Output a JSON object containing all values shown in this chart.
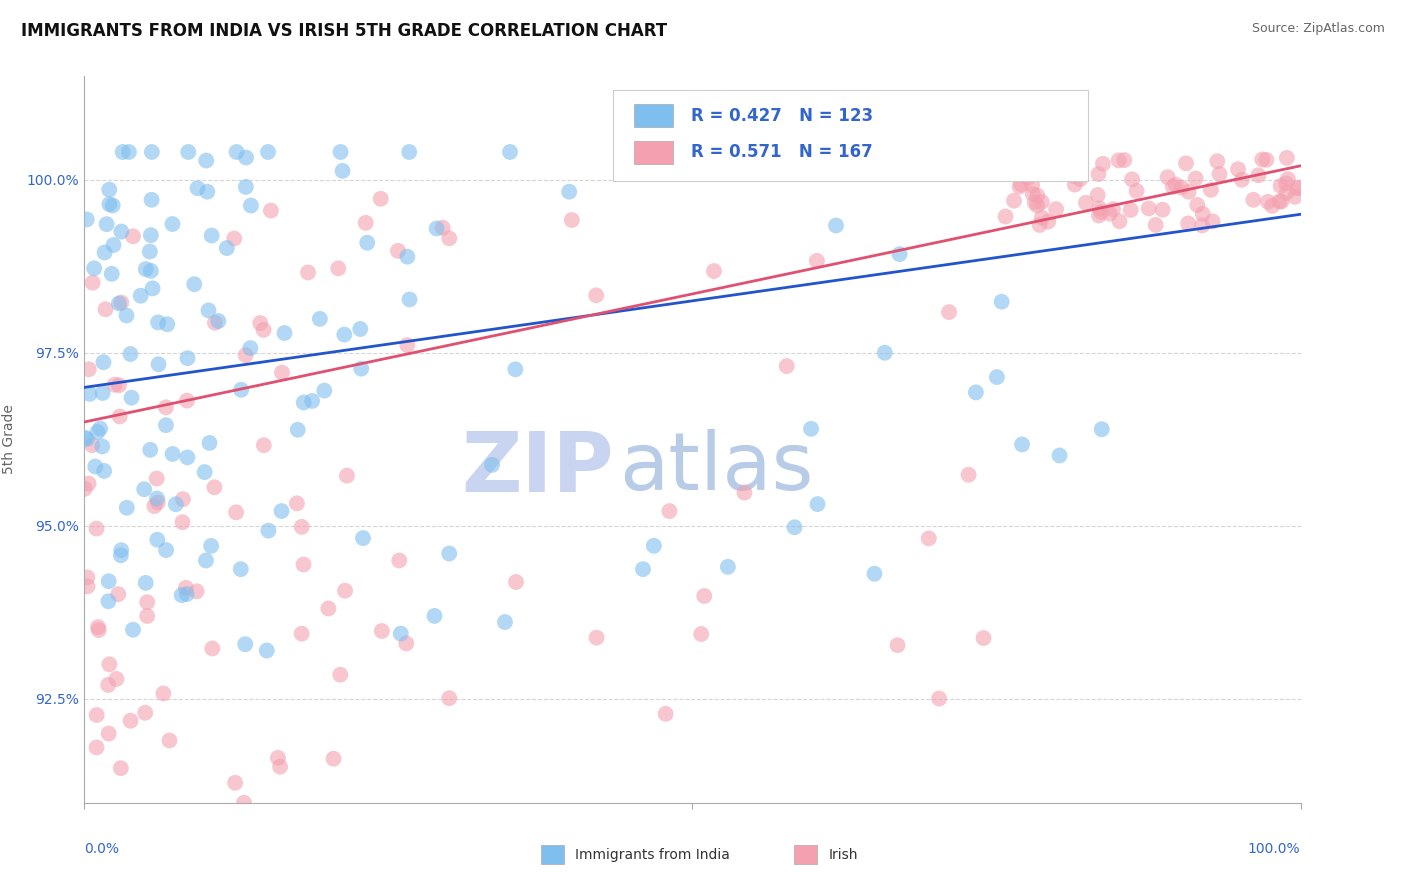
{
  "title": "IMMIGRANTS FROM INDIA VS IRISH 5TH GRADE CORRELATION CHART",
  "source_text": "Source: ZipAtlas.com",
  "ylabel": "5th Grade",
  "xlim": [
    0.0,
    100.0
  ],
  "ylim": [
    91.0,
    101.5
  ],
  "yticks": [
    92.5,
    95.0,
    97.5,
    100.0
  ],
  "ytick_labels": [
    "92.5%",
    "95.0%",
    "97.5%",
    "100.0%"
  ],
  "blue_color": "#7fbfef",
  "pink_color": "#f4a0b0",
  "blue_line_color": "#2255cc",
  "pink_line_color": "#e05070",
  "R_blue": 0.427,
  "N_blue": 123,
  "R_pink": 0.571,
  "N_pink": 167,
  "legend_R_color": "#3366cc",
  "watermark_zip_color": "#c8d4f0",
  "watermark_atlas_color": "#b8cce8",
  "background_color": "#ffffff",
  "title_fontsize": 12,
  "axis_label_fontsize": 10,
  "tick_fontsize": 10,
  "legend_fontsize": 12
}
